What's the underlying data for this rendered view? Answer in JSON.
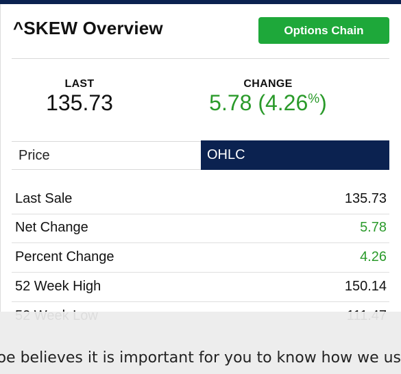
{
  "page": {
    "title": "^SKEW Overview",
    "options_chain_label": "Options Chain"
  },
  "stats": {
    "last_label": "LAST",
    "last_value": "135.73",
    "change_label": "CHANGE",
    "change_value": "5.78 (4.26",
    "change_pct_symbol": "%",
    "change_close": ")"
  },
  "tabs": [
    {
      "label": "Price",
      "active": false
    },
    {
      "label": "OHLC",
      "active": true
    }
  ],
  "table": {
    "rows": [
      {
        "label": "Last Sale",
        "value": "135.73",
        "positive": false
      },
      {
        "label": "Net Change",
        "value": "5.78",
        "positive": true
      },
      {
        "label": "Percent Change",
        "value": "4.26",
        "positive": true
      },
      {
        "label": "52 Week High",
        "value": "150.14",
        "positive": false
      },
      {
        "label": "52 Week Low",
        "value": "111.47",
        "positive": false
      }
    ]
  },
  "cookie_banner": {
    "text": "boe believes it is important for you to know how we us"
  },
  "colors": {
    "navy": "#0b2250",
    "green": "#1ea83a",
    "positive_text": "#2a9a2a"
  }
}
